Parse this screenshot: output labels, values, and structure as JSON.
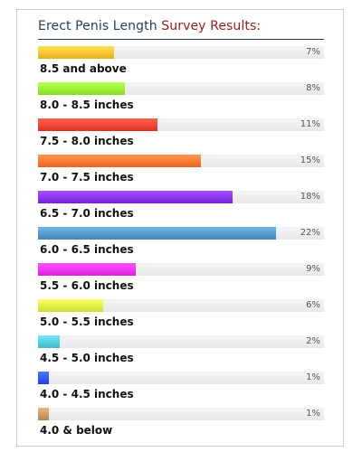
{
  "title": {
    "part1": "Erect Penis Length",
    "part2": "Survey Results:"
  },
  "chart_data": {
    "type": "bar",
    "orientation": "horizontal",
    "categories": [
      "8.5 and above",
      "8.0 - 8.5 inches",
      "7.5 - 8.0 inches",
      "7.0 - 7.5 inches",
      "6.5 - 7.0 inches",
      "6.0 - 6.5 inches",
      "5.5 - 6.0 inches",
      "5.0 - 5.5 inches",
      "4.5 - 5.0 inches",
      "4.0 - 4.5 inches",
      "4.0 & below"
    ],
    "values": [
      7,
      8,
      11,
      15,
      18,
      22,
      9,
      6,
      2,
      1,
      1
    ],
    "value_labels": [
      "7%",
      "8%",
      "11%",
      "15%",
      "18%",
      "22%",
      "9%",
      "6%",
      "2%",
      "1%",
      "1%"
    ],
    "colors": [
      "#f5c531",
      "#99ee33",
      "#ee4433",
      "#f57a33",
      "#8833ee",
      "#5599cc",
      "#ee33ee",
      "#ddee44",
      "#55ccdd",
      "#3355ee",
      "#cc9966"
    ],
    "xlim": [
      0,
      26.4
    ]
  }
}
